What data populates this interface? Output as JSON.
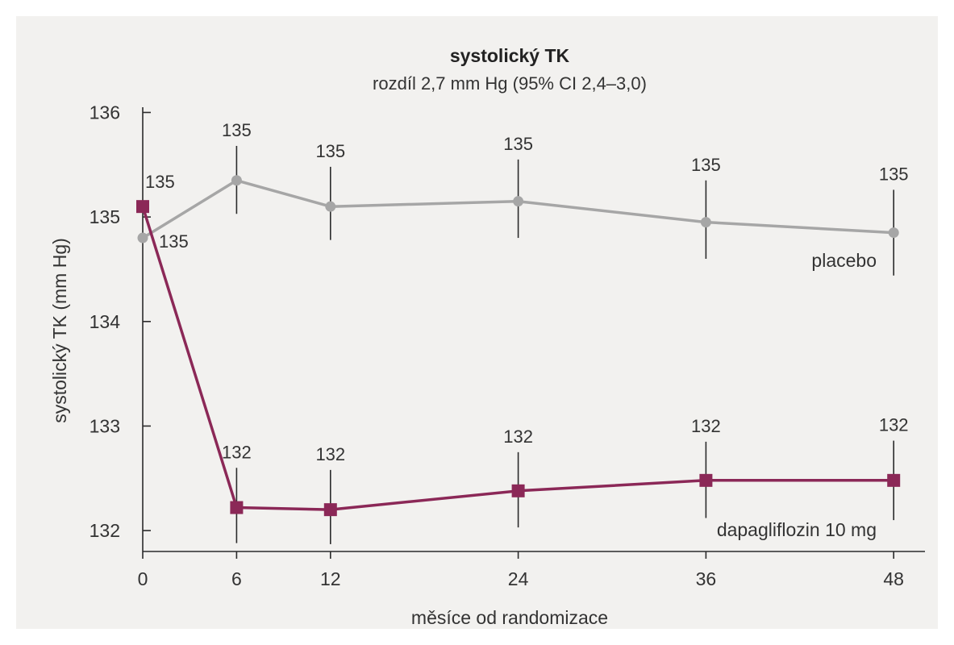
{
  "chart_data": {
    "type": "line",
    "title": "systolický TK",
    "subtitle": "rozdíl 2,7 mm Hg (95% CI 2,4–3,0)",
    "xlabel": "měsíce od randomizace",
    "ylabel": "systolický TK (mm Hg)",
    "x": [
      0,
      6,
      12,
      24,
      36,
      48
    ],
    "x_tick_labels": [
      "0",
      "6",
      "12",
      "24",
      "36",
      "48"
    ],
    "y_tick_labels": [
      "132",
      "133",
      "134",
      "135",
      "136"
    ],
    "xlim": [
      0,
      50
    ],
    "ylim": [
      131.8,
      136.05
    ],
    "grid": false,
    "legend": "none",
    "series": [
      {
        "name": "placebo",
        "color": "#a6a6a6",
        "marker": "circle",
        "values": [
          134.8,
          135.35,
          135.1,
          135.15,
          134.95,
          134.85
        ],
        "error_upper": [
          null,
          135.68,
          135.48,
          135.55,
          135.35,
          135.26
        ],
        "error_lower": [
          null,
          135.03,
          134.78,
          134.8,
          134.6,
          134.44
        ],
        "data_labels": [
          "135",
          "135",
          "135",
          "135",
          "135",
          "135"
        ]
      },
      {
        "name": "dapagliflozin 10 mg",
        "color": "#8b2857",
        "marker": "square",
        "values": [
          135.1,
          132.22,
          132.2,
          132.38,
          132.48,
          132.48
        ],
        "error_upper": [
          null,
          132.6,
          132.58,
          132.75,
          132.85,
          132.86
        ],
        "error_lower": [
          null,
          131.88,
          131.87,
          132.03,
          132.12,
          132.1
        ],
        "data_labels": [
          "135",
          "132",
          "132",
          "132",
          "132",
          "132"
        ]
      }
    ]
  }
}
